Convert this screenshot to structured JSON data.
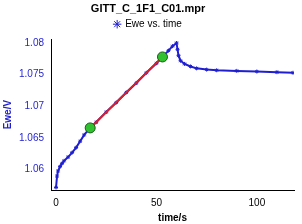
{
  "chart_data": {
    "type": "scatter",
    "title": "GITT_C_1F1_C01.mpr",
    "x_label": "time/s",
    "y_label": "Ewe/V",
    "xlim": [
      -2.5,
      118.5
    ],
    "xticks": [
      0,
      50,
      100
    ],
    "ylim": [
      1.0568,
      1.0806
    ],
    "yticks": [
      1.06,
      1.065,
      1.07,
      1.075,
      1.08
    ],
    "grid": false,
    "legend": "top",
    "series": [
      {
        "name": "Ewe vs. time",
        "color": "#1f1fd1",
        "marker": "star",
        "line_style": "solid",
        "x": [
          0,
          0.5,
          1,
          2,
          3,
          4,
          6,
          8,
          10,
          12,
          14,
          17,
          20,
          25,
          30,
          35,
          40,
          45,
          50,
          53,
          56,
          58,
          60,
          60.5,
          61,
          62,
          64,
          67,
          70,
          75,
          80,
          90,
          100,
          110,
          118
        ],
        "values": [
          1.0572,
          1.059,
          1.0598,
          1.0605,
          1.061,
          1.0614,
          1.062,
          1.0627,
          1.0635,
          1.0645,
          1.0655,
          1.0666,
          1.0675,
          1.0691,
          1.0706,
          1.0722,
          1.0737,
          1.0753,
          1.0768,
          1.0778,
          1.0788,
          1.0795,
          1.08,
          1.079,
          1.078,
          1.0772,
          1.0767,
          1.0763,
          1.076,
          1.0758,
          1.0757,
          1.0756,
          1.0755,
          1.0754,
          1.0753
        ]
      },
      {
        "color": "#e02020",
        "marker": "none",
        "line_style": "solid",
        "x": [
          17,
          53
        ],
        "values": [
          1.0666,
          1.0778
        ]
      },
      {
        "color": "#30c030",
        "marker": "circle",
        "line_style": "none",
        "x": [
          17,
          53
        ],
        "values": [
          1.0666,
          1.0778
        ]
      }
    ]
  }
}
